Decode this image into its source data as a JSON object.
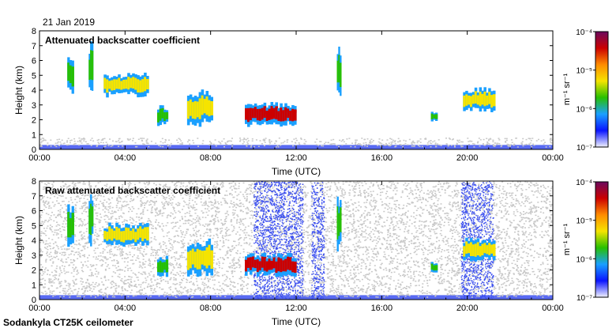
{
  "date": "21 Jan 2019",
  "footer": "Sodankyla CT25K ceilometer",
  "colorbar": {
    "label": "m⁻¹ sr⁻¹",
    "ticks": [
      "10⁻⁴",
      "10⁻⁵",
      "10⁻⁶",
      "10⁻⁷"
    ],
    "colors": [
      "#6b0a5e",
      "#cc0000",
      "#ff8c00",
      "#f5e400",
      "#27c000",
      "#1aa0ff",
      "#0a14ff",
      "#f2f2ff"
    ]
  },
  "chart_data": [
    {
      "type": "heatmap",
      "title": "Attenuated backscatter coefficient",
      "xlabel": "Time (UTC)",
      "ylabel": "Height (km)",
      "xlim": [
        0,
        24
      ],
      "ylim": [
        0,
        8
      ],
      "x_ticks": [
        "00:00",
        "04:00",
        "08:00",
        "12:00",
        "16:00",
        "20:00",
        "00:00"
      ],
      "y_ticks": [
        "0",
        "1",
        "2",
        "3",
        "4",
        "5",
        "6",
        "7",
        "8"
      ],
      "color_scale": "log",
      "clim": [
        "1e-7",
        "1e-4"
      ],
      "layers": [
        {
          "name": "surface layer",
          "t": [
            0,
            24
          ],
          "h": [
            0,
            0.3
          ],
          "level": "low"
        },
        {
          "name": "noise haze",
          "t": [
            0,
            24
          ],
          "h": [
            0.2,
            0.8
          ],
          "level": "noise"
        },
        {
          "name": "cloud",
          "t": [
            1.3,
            1.6
          ],
          "h": [
            3.5,
            6.5
          ],
          "level": "medium"
        },
        {
          "name": "cloud",
          "t": [
            2.3,
            2.5
          ],
          "h": [
            3.5,
            7.3
          ],
          "level": "medium"
        },
        {
          "name": "cloud",
          "t": [
            3.0,
            5.1
          ],
          "h": [
            3.5,
            5.2
          ],
          "level": "medium-high"
        },
        {
          "name": "cloud",
          "t": [
            5.5,
            6.0
          ],
          "h": [
            1.5,
            3.0
          ],
          "level": "medium"
        },
        {
          "name": "cloud",
          "t": [
            6.9,
            8.1
          ],
          "h": [
            1.5,
            4.2
          ],
          "level": "medium-high"
        },
        {
          "name": "cloud",
          "t": [
            9.6,
            12.0
          ],
          "h": [
            1.5,
            3.2
          ],
          "level": "high"
        },
        {
          "name": "cloud",
          "t": [
            13.9,
            14.1
          ],
          "h": [
            3.0,
            7.0
          ],
          "level": "medium"
        },
        {
          "name": "cloud",
          "t": [
            18.3,
            18.6
          ],
          "h": [
            1.8,
            2.6
          ],
          "level": "medium"
        },
        {
          "name": "cloud",
          "t": [
            19.8,
            21.3
          ],
          "h": [
            2.5,
            4.2
          ],
          "level": "medium-high"
        }
      ]
    },
    {
      "type": "heatmap",
      "title": "Raw attenuated backscatter coefficient",
      "xlabel": "Time (UTC)",
      "ylabel": "Height (km)",
      "xlim": [
        0,
        24
      ],
      "ylim": [
        0,
        8
      ],
      "x_ticks": [
        "00:00",
        "04:00",
        "08:00",
        "12:00",
        "16:00",
        "20:00",
        "00:00"
      ],
      "y_ticks": [
        "0",
        "1",
        "2",
        "3",
        "4",
        "5",
        "6",
        "7",
        "8"
      ],
      "color_scale": "log",
      "clim": [
        "1e-7",
        "1e-4"
      ],
      "layers": [
        {
          "name": "surface layer",
          "t": [
            0,
            24
          ],
          "h": [
            0,
            0.3
          ],
          "level": "low"
        },
        {
          "name": "noise haze",
          "t": [
            0,
            24
          ],
          "h": [
            0.2,
            8
          ],
          "level": "noise"
        },
        {
          "name": "precip streak",
          "t": [
            10.0,
            12.3
          ],
          "h": [
            0,
            8
          ],
          "level": "low"
        },
        {
          "name": "precip streak",
          "t": [
            12.7,
            13.3
          ],
          "h": [
            0,
            8
          ],
          "level": "low"
        },
        {
          "name": "precip streak",
          "t": [
            19.7,
            21.2
          ],
          "h": [
            0,
            8
          ],
          "level": "low"
        },
        {
          "name": "cloud",
          "t": [
            1.3,
            1.6
          ],
          "h": [
            3.5,
            6.5
          ],
          "level": "medium"
        },
        {
          "name": "cloud",
          "t": [
            2.3,
            2.5
          ],
          "h": [
            3.5,
            7.3
          ],
          "level": "medium"
        },
        {
          "name": "cloud",
          "t": [
            3.0,
            5.1
          ],
          "h": [
            3.5,
            5.2
          ],
          "level": "medium-high"
        },
        {
          "name": "cloud",
          "t": [
            5.5,
            6.0
          ],
          "h": [
            1.5,
            3.0
          ],
          "level": "medium"
        },
        {
          "name": "cloud",
          "t": [
            6.9,
            8.1
          ],
          "h": [
            1.5,
            4.2
          ],
          "level": "medium-high"
        },
        {
          "name": "cloud",
          "t": [
            9.6,
            12.0
          ],
          "h": [
            1.5,
            3.2
          ],
          "level": "high"
        },
        {
          "name": "cloud",
          "t": [
            13.9,
            14.1
          ],
          "h": [
            3.0,
            7.0
          ],
          "level": "medium"
        },
        {
          "name": "cloud",
          "t": [
            18.3,
            18.6
          ],
          "h": [
            1.8,
            2.6
          ],
          "level": "medium"
        },
        {
          "name": "cloud",
          "t": [
            19.8,
            21.3
          ],
          "h": [
            2.5,
            4.2
          ],
          "level": "medium-high"
        }
      ]
    }
  ]
}
